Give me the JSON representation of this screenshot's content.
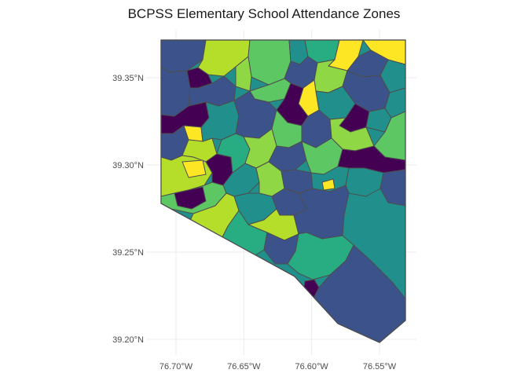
{
  "title": "BCPSS Elementary School Attendance Zones",
  "axes": {
    "x_ticks": [
      {
        "value": -76.7,
        "label": "76.70°W"
      },
      {
        "value": -76.65,
        "label": "76.65°W"
      },
      {
        "value": -76.6,
        "label": "76.60°W"
      },
      {
        "value": -76.55,
        "label": "76.55°W"
      }
    ],
    "y_ticks": [
      {
        "value": 39.35,
        "label": "39.35°N"
      },
      {
        "value": 39.3,
        "label": "39.30°N"
      },
      {
        "value": 39.25,
        "label": "39.25°N"
      },
      {
        "value": 39.2,
        "label": "39.20°N"
      }
    ],
    "grid": true
  },
  "palette": {
    "fill_scale": "viridis",
    "colors": [
      "#440154",
      "#3b528b",
      "#21908c",
      "#27ad81",
      "#5dc863",
      "#8fd744",
      "#b5de2b",
      "#fde725"
    ],
    "zone_border": "#4d4d4d",
    "grid": "#ebebeb",
    "axis_text": "#4d4d4d"
  }
}
